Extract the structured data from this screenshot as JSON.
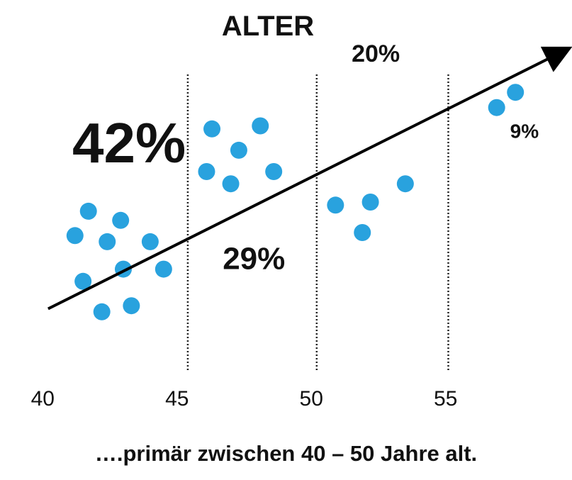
{
  "chart_data": {
    "type": "scatter",
    "title": "ALTER",
    "xlabel": "",
    "ylabel": "",
    "xlim": [
      39.2,
      59.6
    ],
    "ylim": [
      0,
      100
    ],
    "x_ticks": [
      "40",
      "45",
      "50",
      "55"
    ],
    "divider_x": [
      45.4,
      50.2,
      55.1
    ],
    "dot_color": "#29A2DE",
    "points": [
      {
        "x": 41.7,
        "y": 47
      },
      {
        "x": 42.9,
        "y": 44
      },
      {
        "x": 41.2,
        "y": 39
      },
      {
        "x": 42.4,
        "y": 37
      },
      {
        "x": 44.0,
        "y": 37
      },
      {
        "x": 41.5,
        "y": 24
      },
      {
        "x": 43.0,
        "y": 28
      },
      {
        "x": 44.5,
        "y": 28
      },
      {
        "x": 42.2,
        "y": 14
      },
      {
        "x": 43.3,
        "y": 16
      },
      {
        "x": 46.3,
        "y": 74
      },
      {
        "x": 48.1,
        "y": 75
      },
      {
        "x": 47.3,
        "y": 67
      },
      {
        "x": 46.1,
        "y": 60
      },
      {
        "x": 47.0,
        "y": 56
      },
      {
        "x": 48.6,
        "y": 60
      },
      {
        "x": 50.9,
        "y": 49
      },
      {
        "x": 52.2,
        "y": 50
      },
      {
        "x": 51.9,
        "y": 40
      },
      {
        "x": 53.5,
        "y": 56
      },
      {
        "x": 56.9,
        "y": 81
      },
      {
        "x": 57.6,
        "y": 86
      }
    ],
    "trend_arrow": {
      "from": [
        40.2,
        15
      ],
      "to": [
        59.5,
        100
      ]
    },
    "annotations": [
      {
        "text": "42%",
        "x": 41.1,
        "y": 63
      },
      {
        "text": "29%",
        "x": 46.7,
        "y": 28
      },
      {
        "text": "20%",
        "x": 51.5,
        "y": 96
      },
      {
        "text": "9%",
        "x": 57.4,
        "y": 71
      }
    ]
  },
  "caption": "….primär zwischen 40 – 50 Jahre alt."
}
